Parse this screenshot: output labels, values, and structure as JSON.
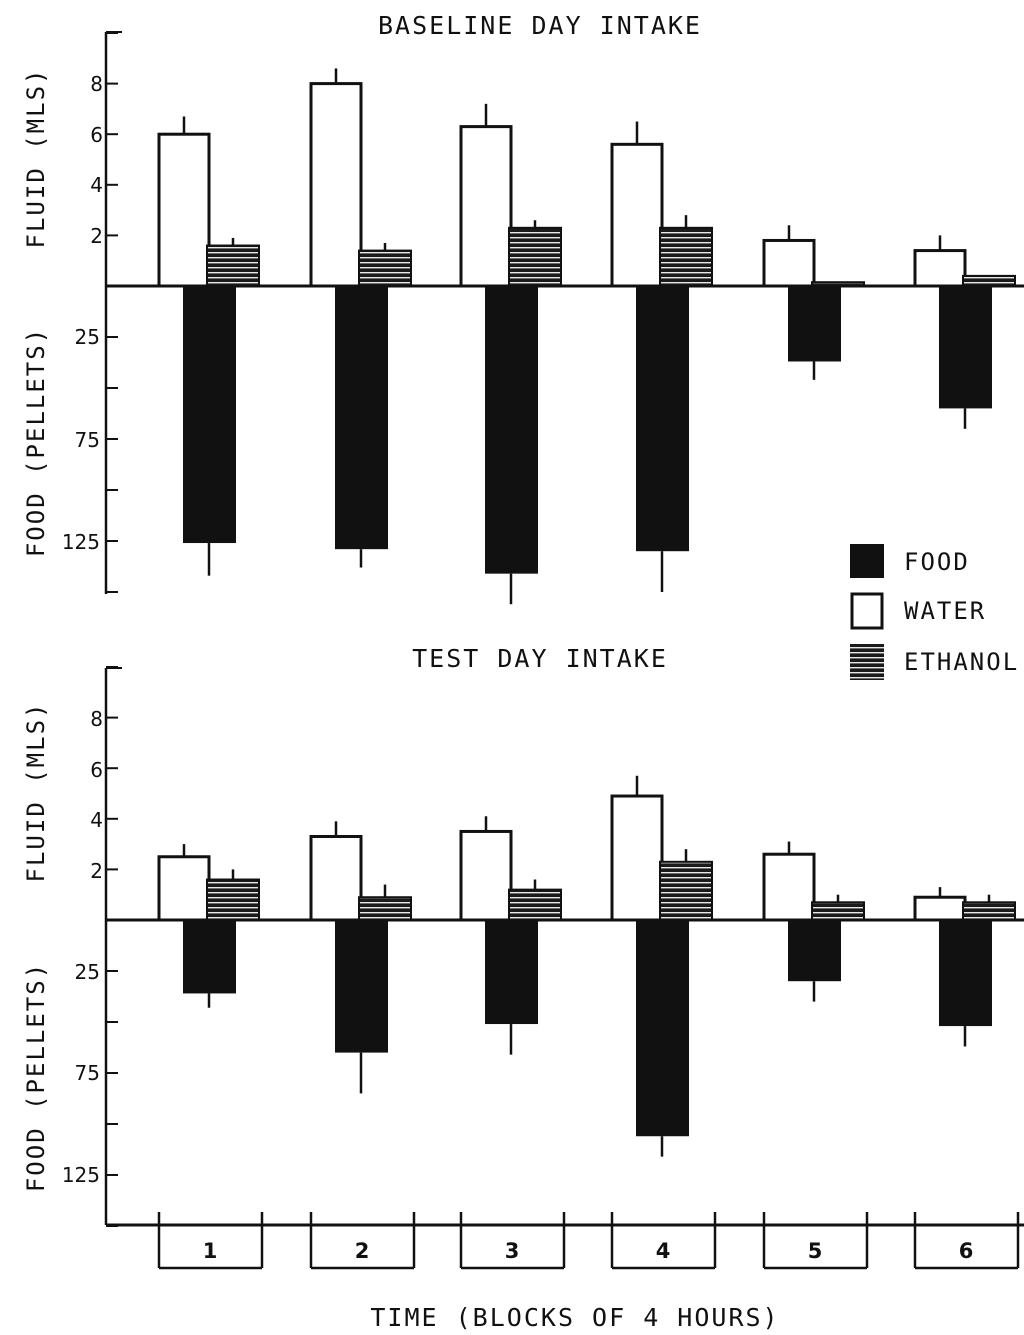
{
  "colors": {
    "food": "#111111",
    "water": "#ffffff",
    "ethanol": "#1a1a1a",
    "ethanol_stripe": "#e8e8e8",
    "axis": "#111111"
  },
  "chart_data": [
    {
      "type": "bar",
      "title": "BASELINE DAY INTAKE",
      "categories": [
        "1",
        "2",
        "3",
        "4",
        "5",
        "6"
      ],
      "fluid_ylabel": "FLUID (MLS)",
      "food_ylabel": "FOOD (PELLETS)",
      "fluid_ticks": [
        "2",
        "4",
        "6",
        "8"
      ],
      "food_ticks": [
        "25",
        "75",
        "125"
      ],
      "fluid_ylim": [
        0,
        10
      ],
      "food_ylim": [
        0,
        150
      ],
      "series": [
        {
          "name": "WATER",
          "values": [
            6.0,
            8.0,
            6.3,
            5.6,
            1.8,
            1.4
          ],
          "errors": [
            0.7,
            0.6,
            0.9,
            0.9,
            0.6,
            0.6
          ]
        },
        {
          "name": "ETHANOL",
          "values": [
            1.6,
            1.4,
            2.3,
            2.3,
            0.15,
            0.4
          ],
          "errors": [
            0.3,
            0.3,
            0.3,
            0.5,
            0.0,
            0.0
          ]
        },
        {
          "name": "FOOD",
          "values": [
            126,
            129,
            141,
            130,
            37,
            60
          ],
          "errors": [
            16,
            9,
            15,
            20,
            9,
            10
          ]
        }
      ]
    },
    {
      "type": "bar",
      "title": "TEST DAY INTAKE",
      "categories": [
        "1",
        "2",
        "3",
        "4",
        "5",
        "6"
      ],
      "fluid_ylabel": "FLUID (MLS)",
      "food_ylabel": "FOOD (PELLETS)",
      "fluid_ticks": [
        "2",
        "4",
        "6",
        "8"
      ],
      "food_ticks": [
        "25",
        "75",
        "125"
      ],
      "fluid_ylim": [
        0,
        10
      ],
      "food_ylim": [
        0,
        150
      ],
      "series": [
        {
          "name": "WATER",
          "values": [
            2.5,
            3.3,
            3.5,
            4.9,
            2.6,
            0.9
          ],
          "errors": [
            0.5,
            0.6,
            0.6,
            0.8,
            0.5,
            0.4
          ]
        },
        {
          "name": "ETHANOL",
          "values": [
            1.6,
            0.9,
            1.2,
            2.3,
            0.7,
            0.7
          ],
          "errors": [
            0.4,
            0.5,
            0.4,
            0.5,
            0.3,
            0.3
          ]
        },
        {
          "name": "FOOD",
          "values": [
            36,
            65,
            51,
            106,
            30,
            52
          ],
          "errors": [
            7,
            20,
            15,
            10,
            10,
            10
          ]
        }
      ]
    }
  ],
  "legend": {
    "food_label": "FOOD",
    "water_label": "WATER",
    "ethanol_label": "ETHANOL"
  },
  "x_axis_label": "TIME (BLOCKS OF 4 HOURS)"
}
